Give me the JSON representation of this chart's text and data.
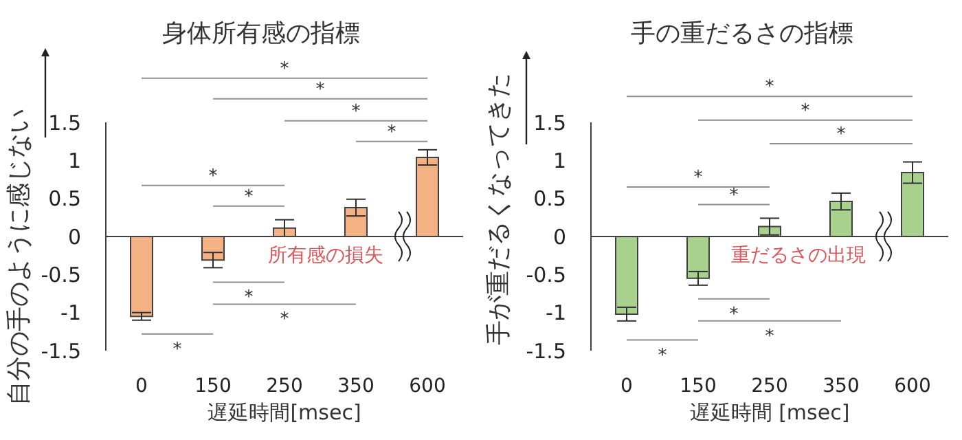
{
  "chart_data": [
    {
      "type": "bar",
      "title": "身体所有感の指標",
      "xlabel": "遅延時間[msec]",
      "ylabel": "自分の手のように感じない",
      "categories": [
        "0",
        "150",
        "250",
        "350",
        "600"
      ],
      "values": [
        -1.05,
        -0.31,
        0.11,
        0.38,
        1.04
      ],
      "errors": [
        0.05,
        0.1,
        0.11,
        0.11,
        0.1
      ],
      "color": "#f4b183",
      "ylim": [
        -1.5,
        1.5
      ],
      "yticks": [
        -1.5,
        -1,
        -0.5,
        0,
        0.5,
        1,
        1.5
      ],
      "annotations": [
        "*",
        "*",
        "*",
        "*",
        "*",
        "*",
        "*",
        "*",
        "*",
        "所有感の損失"
      ]
    },
    {
      "type": "bar",
      "title": "手の重だるさの指標",
      "xlabel": "遅延時間 [msec]",
      "ylabel": "手が重だるくなってきた",
      "categories": [
        "0",
        "150",
        "250",
        "350",
        "600"
      ],
      "values": [
        -1.02,
        -0.55,
        0.13,
        0.46,
        0.84
      ],
      "errors": [
        0.09,
        0.09,
        0.11,
        0.11,
        0.14
      ],
      "color": "#a9d18e",
      "ylim": [
        -1.5,
        1.5
      ],
      "yticks": [
        -1.5,
        -1,
        -0.5,
        0,
        0.5,
        1,
        1.5
      ],
      "annotations": [
        "*",
        "*",
        "*",
        "*",
        "*",
        "*",
        "*",
        "*",
        "重だるさの出現"
      ]
    }
  ]
}
